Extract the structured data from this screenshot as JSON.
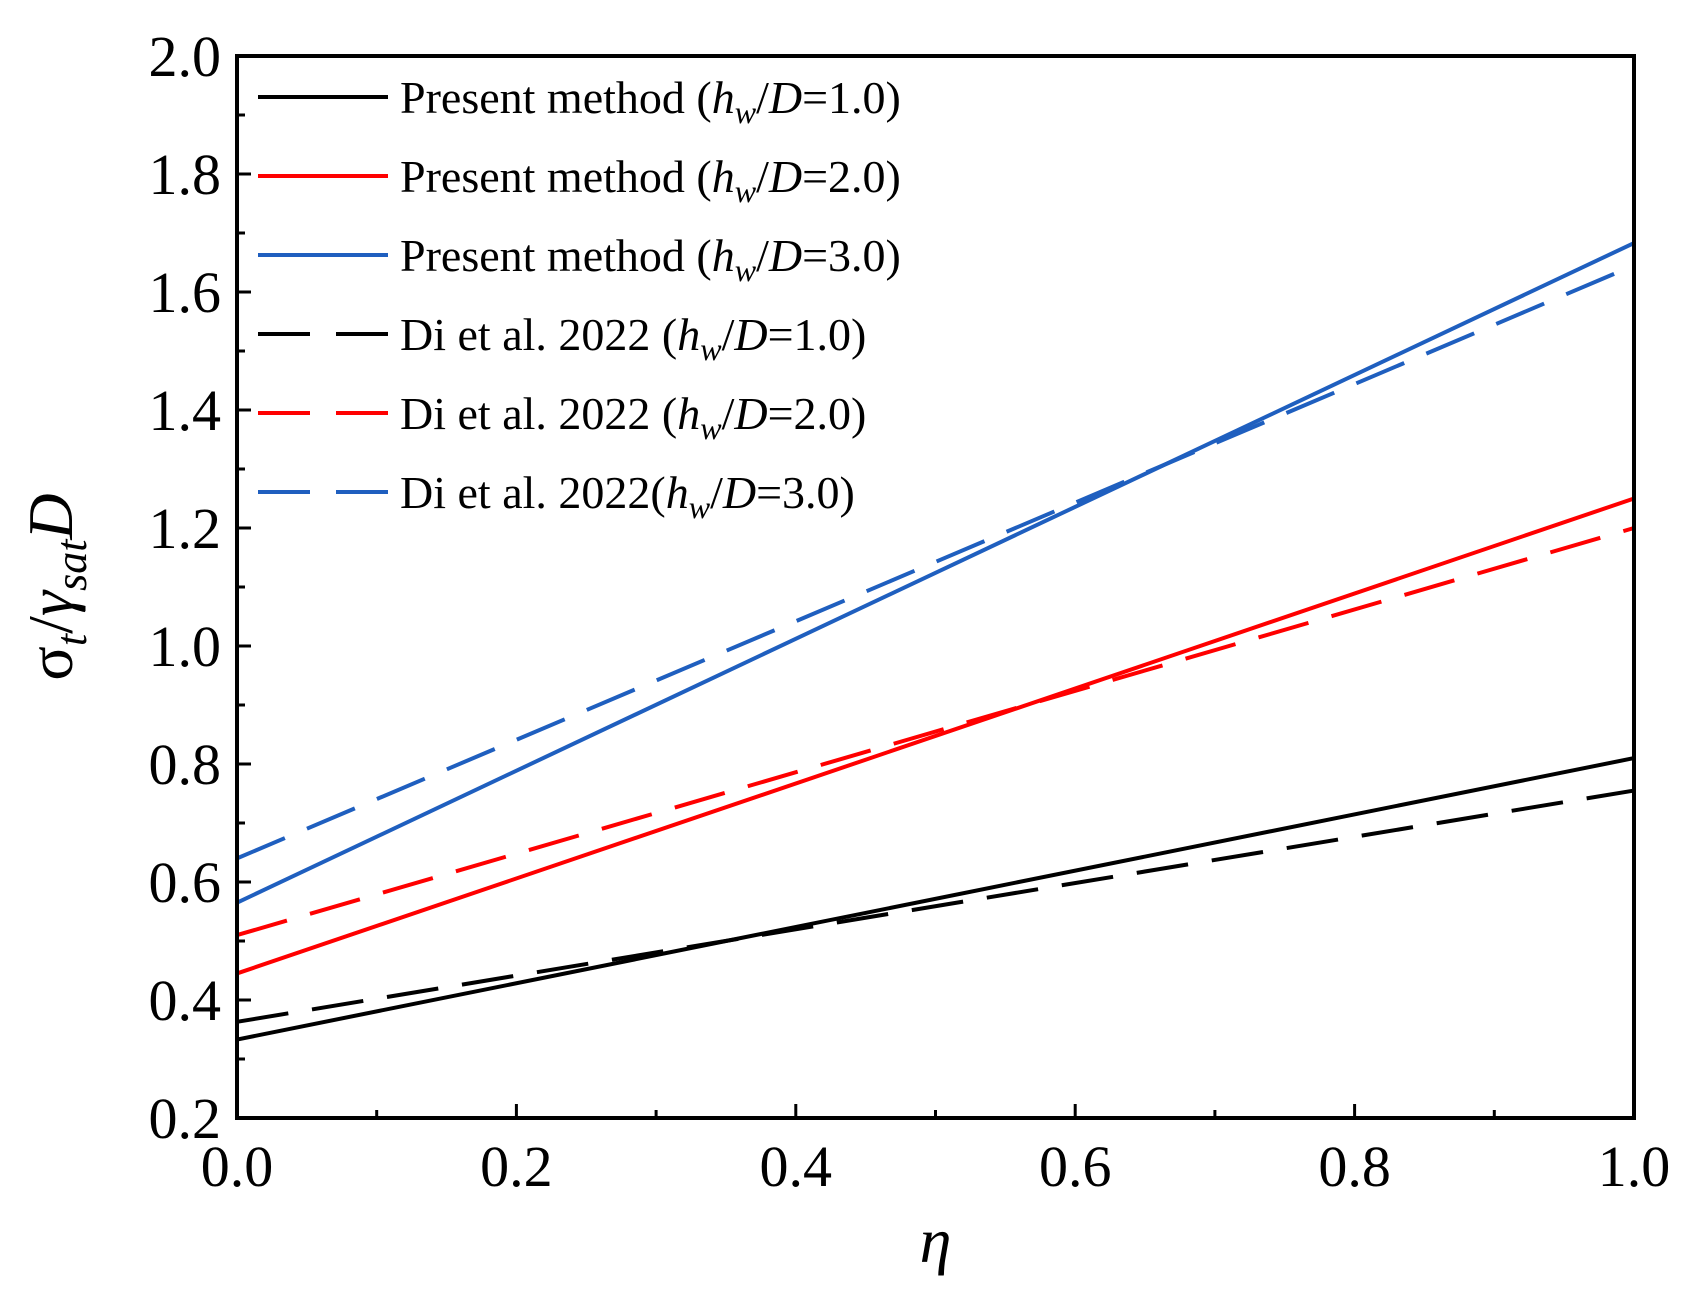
{
  "chart_data": {
    "type": "line",
    "xlabel": "η",
    "ylabel": {
      "main": "σ",
      "sub1": "t",
      "slash": "/",
      "gamma": "γ",
      "sub2": "sat",
      "tail": "D"
    },
    "xlim": [
      0.0,
      1.0
    ],
    "ylim": [
      0.2,
      2.0
    ],
    "xticks": [
      "0.0",
      "0.2",
      "0.4",
      "0.6",
      "0.8",
      "1.0"
    ],
    "yticks": [
      "0.2",
      "0.4",
      "0.6",
      "0.8",
      "1.0",
      "1.2",
      "1.4",
      "1.6",
      "1.8",
      "2.0"
    ],
    "grid": false,
    "legend_position": "top-left",
    "series": [
      {
        "name": {
          "pre": "Present method (",
          "h": "h",
          "w": "w",
          "mid": "/",
          "d": "D",
          "post": "=1.0)"
        },
        "color": "#000000",
        "style": "solid",
        "x": [
          0.0,
          1.0
        ],
        "y": [
          0.333,
          0.81
        ]
      },
      {
        "name": {
          "pre": "Present method (",
          "h": "h",
          "w": "w",
          "mid": "/",
          "d": "D",
          "post": "=2.0)"
        },
        "color": "#ff0000",
        "style": "solid",
        "x": [
          0.0,
          1.0
        ],
        "y": [
          0.445,
          1.25
        ]
      },
      {
        "name": {
          "pre": "Present method (",
          "h": "h",
          "w": "w",
          "mid": "/",
          "d": "D",
          "post": "=3.0)"
        },
        "color": "#1f5fbf",
        "style": "solid",
        "x": [
          0.0,
          1.0
        ],
        "y": [
          0.565,
          1.683
        ]
      },
      {
        "name": {
          "pre": "Di et al. 2022 (",
          "h": "h",
          "w": "w",
          "mid": "/",
          "d": "D",
          "post": "=1.0)"
        },
        "color": "#000000",
        "style": "dashed",
        "x": [
          0.0,
          1.0
        ],
        "y": [
          0.363,
          0.755
        ]
      },
      {
        "name": {
          "pre": "Di et al. 2022 (",
          "h": "h",
          "w": "w",
          "mid": "/",
          "d": "D",
          "post": "=2.0)"
        },
        "color": "#ff0000",
        "style": "dashed",
        "x": [
          0.0,
          1.0
        ],
        "y": [
          0.51,
          1.2
        ]
      },
      {
        "name": {
          "pre": "Di et al. 2022(",
          "h": "h",
          "w": "w",
          "mid": "/",
          "d": "D",
          "post": "=3.0)"
        },
        "color": "#1f5fbf",
        "style": "dashed",
        "x": [
          0.0,
          1.0
        ],
        "y": [
          0.64,
          1.645
        ]
      }
    ]
  }
}
